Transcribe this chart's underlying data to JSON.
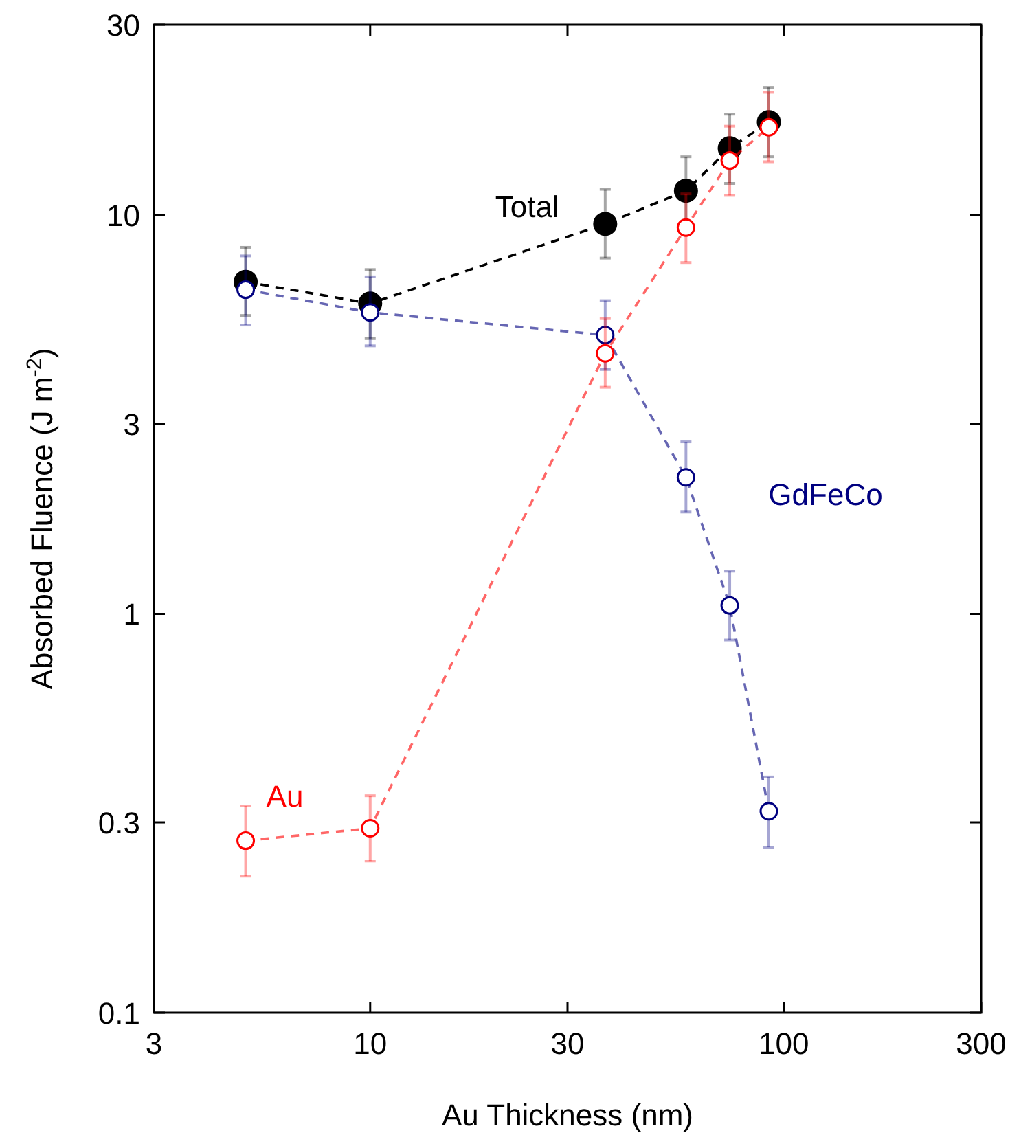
{
  "chart_data": {
    "type": "line",
    "xlabel": "Au Thickness (nm)",
    "ylabel": "Absorbed Fluence (J m$^{-2}$)",
    "log": "xy",
    "xlim": [
      3,
      300
    ],
    "xticks": [
      3,
      10,
      30,
      100,
      300
    ],
    "ylim": [
      0.1,
      30
    ],
    "yticks": [
      0.1,
      0.3,
      1,
      3,
      10,
      30
    ],
    "grid": false,
    "marker": "circle",
    "line_style": "dashed",
    "x": [
      5,
      10,
      37,
      58,
      74,
      92
    ],
    "series": [
      {
        "name": "Total",
        "color": "#000000",
        "values": [
          6.8,
          6.0,
          9.5,
          11.5,
          14.7,
          17.1
        ],
        "errors": [
          [
            5.6,
            8.3
          ],
          [
            4.9,
            7.3
          ],
          [
            7.8,
            11.6
          ],
          [
            9.4,
            14.0
          ],
          [
            12.0,
            17.9
          ],
          [
            14.0,
            20.9
          ]
        ]
      },
      {
        "name": "GdFeCo",
        "color": "#000080",
        "values": [
          6.5,
          5.7,
          5.0,
          2.2,
          1.05,
          0.32
        ],
        "errors": [
          [
            5.3,
            7.9
          ],
          [
            4.7,
            7.0
          ],
          [
            4.1,
            6.1
          ],
          [
            1.8,
            2.7
          ],
          [
            0.86,
            1.28
          ],
          [
            0.26,
            0.39
          ]
        ]
      },
      {
        "name": "Au",
        "color": "#ff0000",
        "values": [
          0.27,
          0.29,
          4.5,
          9.3,
          13.7,
          16.6
        ],
        "errors": [
          [
            0.22,
            0.33
          ],
          [
            0.24,
            0.35
          ],
          [
            3.7,
            5.5
          ],
          [
            7.6,
            11.3
          ],
          [
            11.2,
            16.7
          ],
          [
            13.6,
            20.3
          ]
        ]
      }
    ]
  }
}
